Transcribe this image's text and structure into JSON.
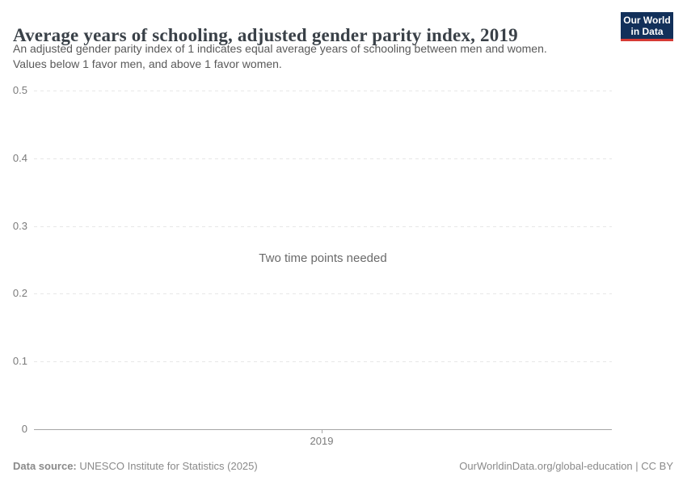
{
  "header": {
    "title": "Average years of schooling, adjusted gender parity index, 2019",
    "subtitle_line1": "An adjusted gender parity index of 1 indicates equal average years of schooling between men and women.",
    "subtitle_line2": "Values below 1 favor men, and above 1 favor women.",
    "logo": {
      "line1": "Our World",
      "line2": "in Data",
      "bg_color": "#12305a",
      "accent_color": "#d73a34"
    }
  },
  "chart_data": {
    "type": "line",
    "title": "Average years of schooling, adjusted gender parity index, 2019",
    "note": "Two time points needed",
    "series": [],
    "x_ticks": [
      "2019"
    ],
    "y_ticks": [
      0,
      0.1,
      0.2,
      0.3,
      0.4,
      0.5
    ],
    "y_tick_labels": [
      "0",
      "0.1",
      "0.2",
      "0.3",
      "0.4",
      "0.5"
    ],
    "ylim": [
      0,
      0.5
    ],
    "grid": true,
    "gridline_style": "dashed",
    "grid_color": "#e7e7e7",
    "axis_color": "#a6a6a6",
    "tick_label_color": "#7b7b7b"
  },
  "footer": {
    "datasource_label": "Data source:",
    "datasource_value": " UNESCO Institute for Statistics (2025)",
    "link": "OurWorldinData.org/global-education | CC BY"
  }
}
